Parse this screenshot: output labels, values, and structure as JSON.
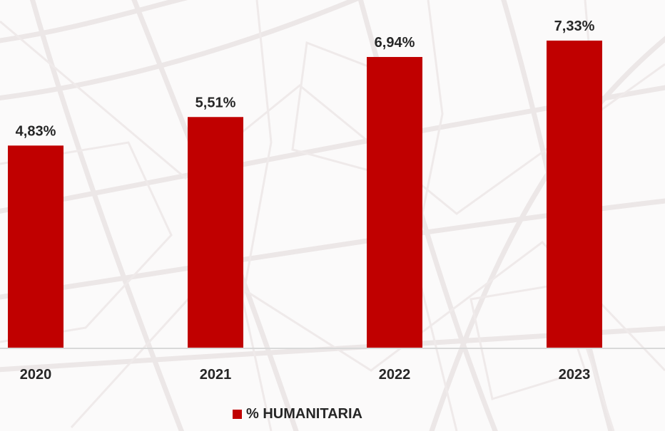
{
  "chart_data": {
    "type": "bar",
    "categories": [
      "2020",
      "2021",
      "2022",
      "2023"
    ],
    "series": [
      {
        "name": "% HUMANITARIA",
        "values": [
          4.83,
          5.51,
          6.94,
          7.33
        ],
        "data_labels": [
          "4,83%",
          "5,51%",
          "6,94%",
          "7,33%"
        ],
        "color": "#c00000"
      }
    ],
    "title": "",
    "xlabel": "",
    "ylabel": "",
    "ylim": [
      0,
      7.5
    ],
    "grid": false,
    "legend_position": "bottom"
  },
  "colors": {
    "bar": "#c00000",
    "axis": "#d9d9d9",
    "text": "#262626",
    "background_lines": "#ece7e7"
  }
}
